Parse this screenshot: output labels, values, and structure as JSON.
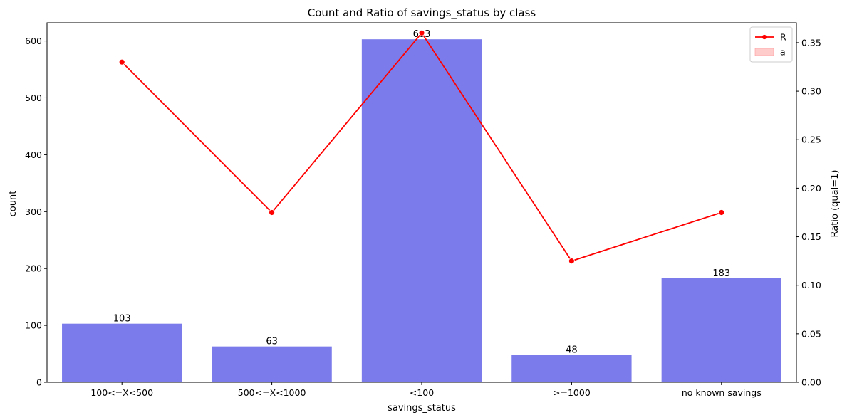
{
  "chart_data": {
    "type": "bar",
    "title": "Count and Ratio of savings_status by class",
    "xlabel": "savings_status",
    "ylabel": "count",
    "y2label": "Ratio (qual=1)",
    "categories": [
      "100<=X<500",
      "500<=X<1000",
      "<100",
      ">=1000",
      "no known savings"
    ],
    "series": [
      {
        "name": "",
        "kind": "bar",
        "axis": "left",
        "color": "#7b7bec",
        "values": [
          103,
          63,
          603,
          48,
          183
        ]
      },
      {
        "name": "R",
        "kind": "line",
        "axis": "right",
        "color": "#ff0000",
        "values": [
          0.33,
          0.175,
          0.36,
          0.125,
          0.175
        ]
      }
    ],
    "data_labels": [
      "103",
      "63",
      "603",
      "48",
      "183"
    ],
    "ylim": [
      0,
      632
    ],
    "y2lim": [
      0,
      0.3705
    ],
    "yticks": [
      0,
      100,
      200,
      300,
      400,
      500,
      600
    ],
    "y2ticks": [
      "0.00",
      "0.05",
      "0.10",
      "0.15",
      "0.20",
      "0.25",
      "0.30",
      "0.35"
    ],
    "legend": {
      "placement": "top-right",
      "entries": [
        {
          "label": "R",
          "kind": "line-marker",
          "color": "#ff0000"
        },
        {
          "label": "a",
          "kind": "patch",
          "color": "#ffcccc"
        }
      ]
    },
    "grid": false
  }
}
